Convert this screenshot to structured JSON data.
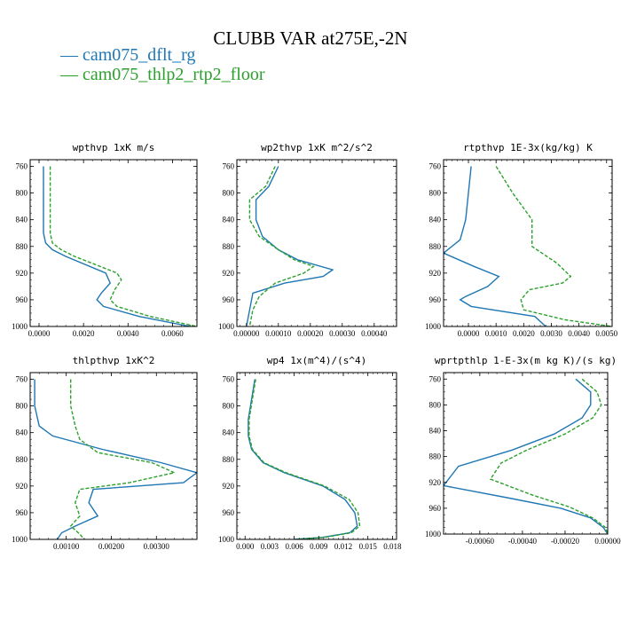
{
  "figure": {
    "title": "CLUBB VAR at275E,-2N",
    "legend": [
      {
        "label": "— cam075_dflt_rg",
        "color": "#1f77b4"
      },
      {
        "label": "— cam075_thlp2_rtp2_floor",
        "color": "#2ca02c"
      }
    ]
  },
  "chart_data": [
    {
      "type": "line",
      "title": "wpthvp  1xK m/s",
      "xlim": [
        -0.0004,
        0.0071
      ],
      "ylim": [
        1000,
        750
      ],
      "xticks": [
        0,
        0.002,
        0.004,
        0.006
      ],
      "xtick_labels": [
        "0.0000",
        "0.0020",
        "0.0040",
        "0.0060"
      ],
      "yticks": [
        760,
        800,
        840,
        880,
        920,
        960,
        1000
      ],
      "series": [
        {
          "color": "#1f77b4",
          "dash": "none",
          "x": [
            0.0002,
            0.0002,
            0.0002,
            0.0002,
            0.0003,
            0.0006,
            0.0012,
            0.003,
            0.0032,
            0.0028,
            0.0026,
            0.0029,
            0.0045,
            0.0068
          ],
          "y": [
            760,
            780,
            820,
            860,
            875,
            885,
            895,
            920,
            935,
            950,
            960,
            970,
            985,
            1000
          ]
        },
        {
          "color": "#2ca02c",
          "dash": "4,2",
          "x": [
            0.0005,
            0.0005,
            0.0005,
            0.0005,
            0.0006,
            0.001,
            0.0016,
            0.0035,
            0.0037,
            0.0034,
            0.0032,
            0.0035,
            0.005,
            0.0071
          ],
          "y": [
            760,
            780,
            820,
            860,
            875,
            885,
            895,
            920,
            930,
            945,
            960,
            970,
            985,
            1000
          ]
        }
      ]
    },
    {
      "type": "line",
      "title": "wp2thvp  1xK m^2/s^2",
      "xlim": [
        -3e-05,
        0.00047
      ],
      "ylim": [
        1000,
        750
      ],
      "xticks": [
        0,
        0.0001,
        0.0002,
        0.0003,
        0.0004
      ],
      "xtick_labels": [
        "0.00000",
        "0.00010",
        "0.00020",
        "0.00030",
        "0.00040"
      ],
      "yticks": [
        760,
        800,
        840,
        880,
        920,
        960,
        1000
      ],
      "series": [
        {
          "color": "#1f77b4",
          "dash": "none",
          "x": [
            0.0001,
            7e-05,
            3e-05,
            3e-05,
            5e-05,
            0.0001,
            0.00016,
            0.00027,
            0.00024,
            0.00012,
            2e-05,
            1e-05,
            0.0
          ],
          "y": [
            760,
            790,
            810,
            840,
            865,
            885,
            900,
            915,
            925,
            935,
            950,
            975,
            1000
          ]
        },
        {
          "color": "#2ca02c",
          "dash": "4,2",
          "x": [
            9e-05,
            6e-05,
            1e-05,
            1e-05,
            4e-05,
            0.0001,
            0.00015,
            0.00021,
            0.00018,
            9e-05,
            4e-05,
            2e-05,
            1e-05
          ],
          "y": [
            760,
            790,
            810,
            840,
            865,
            885,
            900,
            910,
            920,
            935,
            955,
            975,
            1000
          ]
        }
      ]
    },
    {
      "type": "line",
      "title": "rtpthvp  1E-3x(kg/kg) K",
      "xlim": [
        -0.0009,
        0.0052
      ],
      "ylim": [
        1000,
        750
      ],
      "xticks": [
        0,
        0.001,
        0.002,
        0.003,
        0.004,
        0.005
      ],
      "xtick_labels": [
        "0.0000",
        "0.0010",
        "0.0020",
        "0.0030",
        "0.0040",
        "0.0050"
      ],
      "yticks": [
        760,
        800,
        840,
        880,
        920,
        960,
        1000
      ],
      "series": [
        {
          "color": "#1f77b4",
          "dash": "none",
          "x": [
            0.0001,
            0.0,
            -0.0001,
            -0.0003,
            -0.0009,
            0.0002,
            0.0011,
            0.0007,
            -0.0001,
            -0.0003,
            0.0001,
            0.0024,
            0.0028
          ],
          "y": [
            760,
            800,
            840,
            870,
            890,
            910,
            925,
            940,
            955,
            960,
            970,
            985,
            1000
          ]
        },
        {
          "color": "#2ca02c",
          "dash": "4,2",
          "x": [
            0.001,
            0.0016,
            0.0023,
            0.0023,
            0.0023,
            0.0032,
            0.0037,
            0.0034,
            0.0022,
            0.0019,
            0.002,
            0.0035,
            0.0052
          ],
          "y": [
            760,
            800,
            840,
            860,
            880,
            905,
            925,
            935,
            945,
            960,
            975,
            990,
            1000
          ]
        }
      ]
    },
    {
      "type": "line",
      "title": "thlpthvp  1xK^2",
      "xlim": [
        0.0002,
        0.0039
      ],
      "ylim": [
        1000,
        750
      ],
      "xticks": [
        0.001,
        0.002,
        0.003
      ],
      "xtick_labels": [
        "0.00100",
        "0.00200",
        "0.00300"
      ],
      "yticks": [
        760,
        800,
        840,
        880,
        920,
        960,
        1000
      ],
      "series": [
        {
          "color": "#1f77b4",
          "dash": "none",
          "x": [
            0.0003,
            0.0003,
            0.0004,
            0.0007,
            0.0018,
            0.0031,
            0.0039,
            0.0036,
            0.0016,
            0.0015,
            0.0017,
            0.0012,
            0.0009,
            0.0008
          ],
          "y": [
            760,
            800,
            830,
            845,
            865,
            885,
            900,
            915,
            925,
            945,
            965,
            980,
            990,
            1000
          ]
        },
        {
          "color": "#2ca02c",
          "dash": "4,2",
          "x": [
            0.0011,
            0.0011,
            0.0012,
            0.0013,
            0.0017,
            0.0029,
            0.0034,
            0.0024,
            0.0013,
            0.0012,
            0.0013,
            0.0011,
            0.0013,
            0.0014
          ],
          "y": [
            760,
            800,
            830,
            850,
            870,
            885,
            900,
            915,
            925,
            945,
            965,
            980,
            992,
            1000
          ]
        }
      ]
    },
    {
      "type": "line",
      "title": "wp4  1x(m^4)/(s^4)",
      "xlim": [
        -0.001,
        0.0185
      ],
      "ylim": [
        1000,
        750
      ],
      "xticks": [
        0,
        0.003,
        0.006,
        0.009,
        0.012,
        0.015,
        0.018
      ],
      "xtick_labels": [
        "0.000",
        "0.003",
        "0.006",
        "0.009",
        "0.012",
        "0.015",
        "0.018"
      ],
      "yticks": [
        760,
        800,
        840,
        880,
        920,
        960,
        1000
      ],
      "series": [
        {
          "color": "#1f77b4",
          "dash": "none",
          "x": [
            0.0012,
            0.0008,
            0.0004,
            0.0004,
            0.0008,
            0.0022,
            0.0048,
            0.0095,
            0.0122,
            0.0134,
            0.0137,
            0.0128,
            0.0095,
            0.006
          ],
          "y": [
            760,
            790,
            820,
            845,
            865,
            885,
            900,
            920,
            940,
            960,
            980,
            990,
            997,
            1000
          ]
        },
        {
          "color": "#2ca02c",
          "dash": "4,2",
          "x": [
            0.0013,
            0.0009,
            0.0005,
            0.0005,
            0.0009,
            0.0023,
            0.005,
            0.0097,
            0.0127,
            0.0138,
            0.014,
            0.013,
            0.0097,
            0.0062
          ],
          "y": [
            760,
            790,
            820,
            845,
            865,
            885,
            900,
            920,
            940,
            960,
            980,
            990,
            997,
            1000
          ]
        }
      ]
    },
    {
      "type": "line",
      "title": "wprtpthlp  1-E-3x(m kg K)/(s kg)",
      "xlim": [
        -0.00077,
        0.0
      ],
      "ylim": [
        1000,
        750
      ],
      "xticks": [
        -0.0006,
        -0.0004,
        -0.0002,
        0.0
      ],
      "xtick_labels": [
        "-0.00060",
        "-0.00040",
        "-0.00020",
        "0.00000"
      ],
      "yticks": [
        760,
        800,
        840,
        880,
        920,
        960,
        1000
      ],
      "series": [
        {
          "color": "#1f77b4",
          "dash": "none",
          "x": [
            -0.00015,
            -8e-05,
            -8e-05,
            -0.00012,
            -0.00025,
            -0.00045,
            -0.0007,
            -0.00077,
            -0.00045,
            -0.00022,
            -8e-05,
            -2e-05,
            0.0
          ],
          "y": [
            760,
            780,
            800,
            820,
            845,
            870,
            895,
            925,
            945,
            960,
            975,
            990,
            1000
          ]
        },
        {
          "color": "#2ca02c",
          "dash": "4,2",
          "x": [
            -0.00012,
            -5e-05,
            -3e-05,
            -7e-05,
            -0.0002,
            -0.00038,
            -0.0005,
            -0.00055,
            -0.00035,
            -0.00018,
            -7e-05,
            -1e-05,
            0.0
          ],
          "y": [
            760,
            780,
            800,
            820,
            845,
            870,
            890,
            915,
            940,
            958,
            975,
            990,
            1000
          ]
        }
      ]
    }
  ]
}
